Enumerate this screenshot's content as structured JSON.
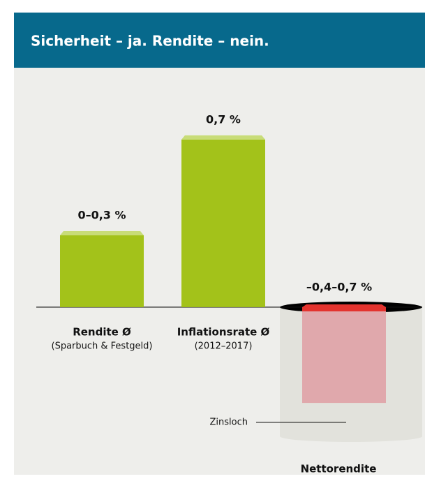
{
  "chart_data": {
    "type": "bar",
    "title": "Sicherheit – ja. Rendite – nein.",
    "categories": [
      "Rendite Ø",
      "Inflationsrate Ø",
      "Nettorendite"
    ],
    "category_notes": [
      "(Sparbuch & Festgeld)",
      "(2012–2017)",
      null
    ],
    "values": [
      0.3,
      0.7,
      -0.4
    ],
    "value_labels": [
      "0–0,3 %",
      "0,7 %",
      "–0,4–0,7 %"
    ],
    "colors": [
      "#a3c21a",
      "#a3c21a",
      "#e0a8ac"
    ],
    "annotations": [
      "Zinsloch"
    ],
    "ylim": [
      -0.7,
      1.0
    ]
  }
}
